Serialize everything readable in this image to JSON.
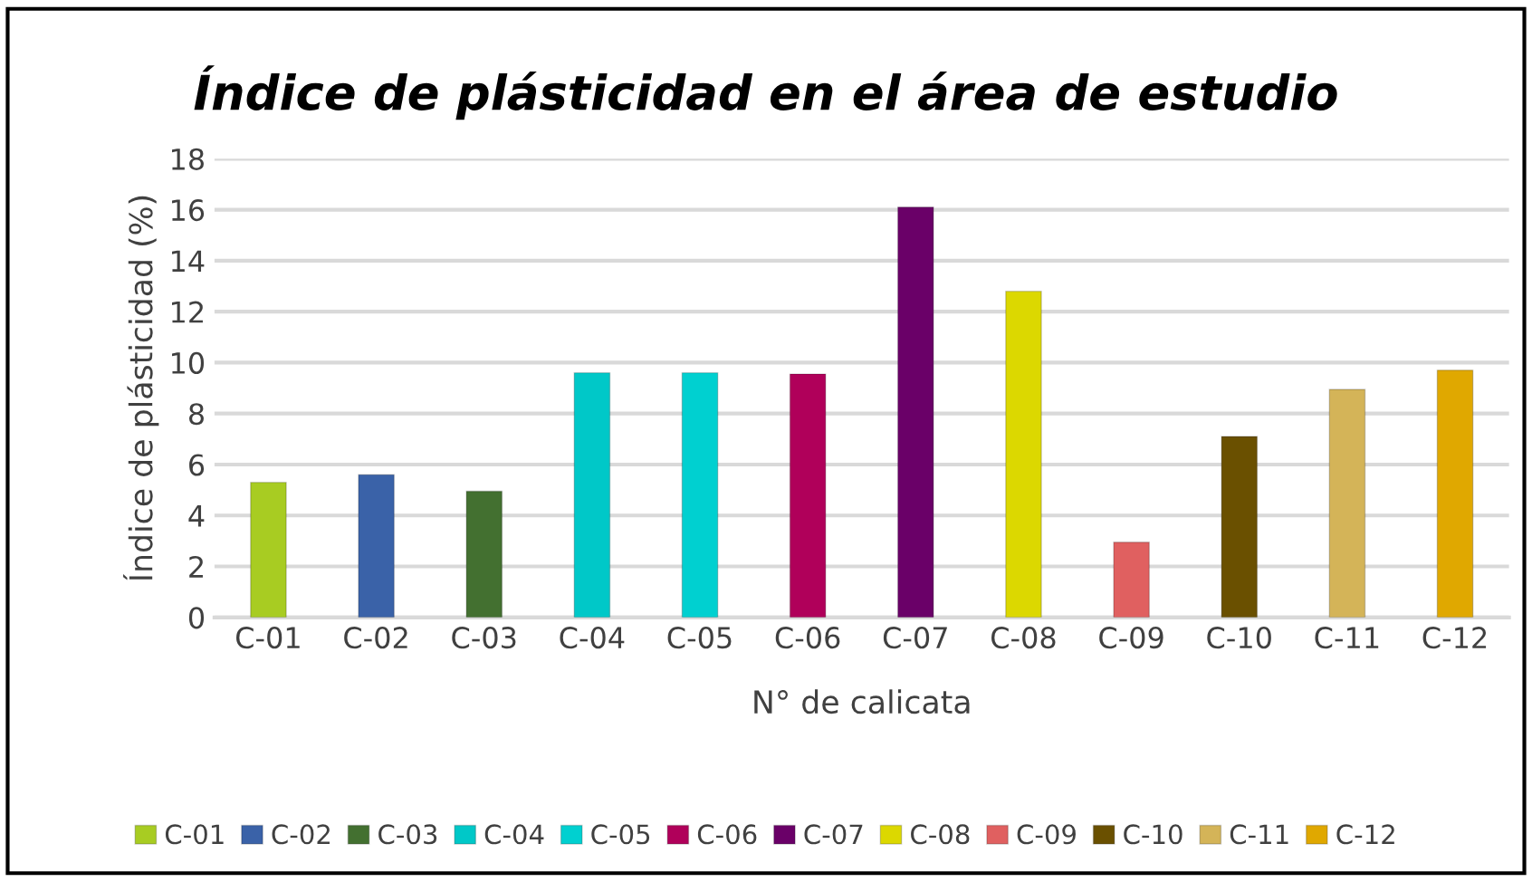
{
  "chart_data": {
    "type": "bar",
    "title": "Índice de plásticidad en el área de estudio",
    "xlabel": "N° de calicata",
    "ylabel": "Índice de plásticidad (%)",
    "categories": [
      "C-01",
      "C-02",
      "C-03",
      "C-04",
      "C-05",
      "C-06",
      "C-07",
      "C-08",
      "C-09",
      "C-10",
      "C-11",
      "C-12"
    ],
    "series": [
      {
        "name": "C-01",
        "color": "#a8cc22",
        "values": [
          5.3,
          null,
          null,
          null,
          null,
          null,
          null,
          null,
          null,
          null,
          null,
          null
        ]
      },
      {
        "name": "C-02",
        "color": "#3a62a8",
        "values": [
          null,
          5.6,
          null,
          null,
          null,
          null,
          null,
          null,
          null,
          null,
          null,
          null
        ]
      },
      {
        "name": "C-03",
        "color": "#437030",
        "values": [
          null,
          null,
          4.95,
          null,
          null,
          null,
          null,
          null,
          null,
          null,
          null,
          null
        ]
      },
      {
        "name": "C-04",
        "color": "#00c8c8",
        "values": [
          null,
          null,
          null,
          9.6,
          null,
          null,
          null,
          null,
          null,
          null,
          null,
          null
        ]
      },
      {
        "name": "C-05",
        "color": "#00d0d0",
        "values": [
          null,
          null,
          null,
          null,
          9.6,
          null,
          null,
          null,
          null,
          null,
          null,
          null
        ]
      },
      {
        "name": "C-06",
        "color": "#b0005a",
        "values": [
          null,
          null,
          null,
          null,
          null,
          9.55,
          null,
          null,
          null,
          null,
          null,
          null
        ]
      },
      {
        "name": "C-07",
        "color": "#6a0068",
        "values": [
          null,
          null,
          null,
          null,
          null,
          null,
          16.1,
          null,
          null,
          null,
          null,
          null
        ]
      },
      {
        "name": "C-08",
        "color": "#dcd800",
        "values": [
          null,
          null,
          null,
          null,
          null,
          null,
          null,
          12.8,
          null,
          null,
          null,
          null
        ]
      },
      {
        "name": "C-09",
        "color": "#e06060",
        "values": [
          null,
          null,
          null,
          null,
          null,
          null,
          null,
          null,
          2.95,
          null,
          null,
          null
        ]
      },
      {
        "name": "C-10",
        "color": "#6a5000",
        "values": [
          null,
          null,
          null,
          null,
          null,
          null,
          null,
          null,
          null,
          7.1,
          null,
          null
        ]
      },
      {
        "name": "C-11",
        "color": "#d4b458",
        "values": [
          null,
          null,
          null,
          null,
          null,
          null,
          null,
          null,
          null,
          null,
          8.95,
          null
        ]
      },
      {
        "name": "C-12",
        "color": "#e0a800",
        "values": [
          null,
          null,
          null,
          null,
          null,
          null,
          null,
          null,
          null,
          null,
          null,
          9.7
        ]
      }
    ],
    "ylim": [
      0,
      18
    ],
    "yticks": [
      0,
      2,
      4,
      6,
      8,
      10,
      12,
      14,
      16,
      18
    ],
    "grid": "y",
    "legend": "bottom"
  }
}
